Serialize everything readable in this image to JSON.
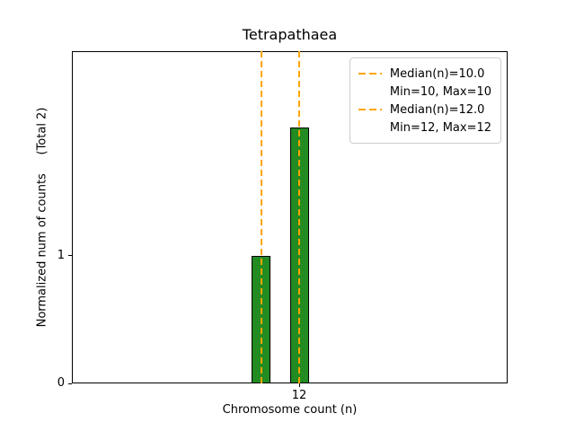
{
  "chart_data": {
    "type": "bar",
    "title": "Tetrapathaea",
    "xlabel": "Chromosome count (n)",
    "ylabel": "Normalized num of counts     (Total 2)",
    "xlim": [
      0,
      23
    ],
    "ylim": [
      0,
      2.6
    ],
    "xticks": [
      {
        "value": 12,
        "label": "12"
      }
    ],
    "yticks": [
      {
        "value": 0,
        "label": "0"
      },
      {
        "value": 1,
        "label": "1"
      }
    ],
    "bars": [
      {
        "x": 10,
        "height": 1
      },
      {
        "x": 12,
        "height": 2
      }
    ],
    "bar_width": 1.0,
    "bar_fill": "#228B22",
    "bar_edge": "#000000",
    "vlines": [
      {
        "x": 10,
        "style": "dashed",
        "color": "#FFA500"
      },
      {
        "x": 12,
        "style": "dashed",
        "color": "#FFA500"
      }
    ],
    "grid": false,
    "legend": {
      "position": "upper right",
      "entries": [
        {
          "label": "Median(n)=10.0",
          "handle": "dashed-line",
          "color": "#FFA500"
        },
        {
          "label": "Min=10, Max=10",
          "handle": "none",
          "color": ""
        },
        {
          "label": "Median(n)=12.0",
          "handle": "dashed-line",
          "color": "#FFA500"
        },
        {
          "label": "Min=12, Max=12",
          "handle": "none",
          "color": ""
        }
      ]
    }
  }
}
